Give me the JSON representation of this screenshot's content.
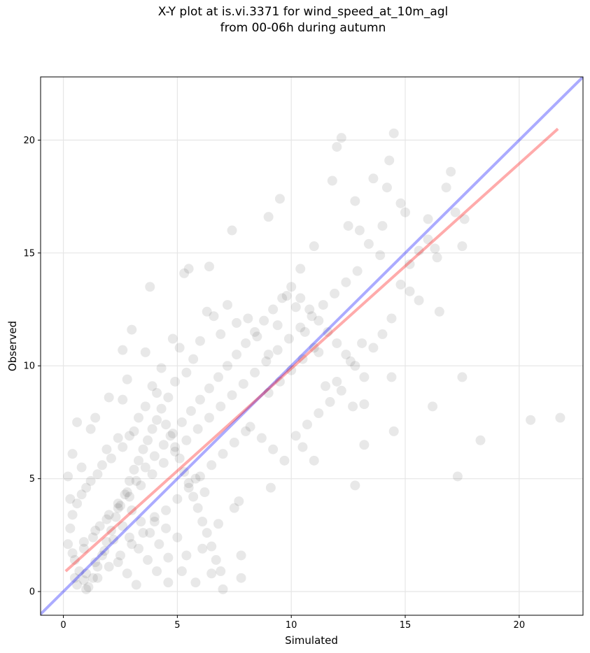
{
  "chart_data": {
    "type": "scatter",
    "title_lines": [
      "X-Y plot at is.vi.3371 for wind_speed_at_10m_agl",
      "from 00-06h during autumn"
    ],
    "xlabel": "Simulated",
    "ylabel": "Observed",
    "xlim": [
      -1.0,
      22.8
    ],
    "ylim": [
      -1.05,
      22.8
    ],
    "xticks": [
      0,
      5,
      10,
      15,
      20
    ],
    "yticks": [
      0,
      5,
      10,
      15,
      20
    ],
    "grid": true,
    "point_color": "#000000",
    "point_opacity": 0.09,
    "one_to_one_line": {
      "color": "#0000ff",
      "x": [
        -1.0,
        22.8
      ],
      "y": [
        -1.0,
        22.8
      ]
    },
    "fit_line": {
      "color": "#ff0000",
      "x": [
        0.1,
        21.7
      ],
      "y": [
        0.9,
        20.5
      ]
    },
    "points": [
      [
        0.2,
        5.1
      ],
      [
        0.3,
        4.1
      ],
      [
        0.6,
        7.5
      ],
      [
        0.4,
        6.1
      ],
      [
        0.8,
        5.5
      ],
      [
        1.2,
        7.2
      ],
      [
        1.4,
        7.7
      ],
      [
        2.0,
        8.6
      ],
      [
        2.6,
        8.5
      ],
      [
        2.8,
        9.4
      ],
      [
        2.6,
        10.7
      ],
      [
        3.0,
        11.6
      ],
      [
        3.8,
        13.5
      ],
      [
        3.6,
        10.6
      ],
      [
        4.8,
        11.2
      ],
      [
        5.3,
        14.1
      ],
      [
        5.5,
        14.3
      ],
      [
        6.4,
        14.4
      ],
      [
        7.4,
        16.0
      ],
      [
        9.0,
        16.6
      ],
      [
        9.5,
        17.4
      ],
      [
        10.4,
        14.3
      ],
      [
        11.0,
        15.3
      ],
      [
        11.8,
        18.2
      ],
      [
        12.0,
        19.7
      ],
      [
        12.2,
        20.1
      ],
      [
        12.5,
        16.2
      ],
      [
        12.8,
        17.3
      ],
      [
        13.0,
        16.0
      ],
      [
        13.6,
        18.3
      ],
      [
        14.0,
        16.2
      ],
      [
        14.2,
        17.9
      ],
      [
        14.3,
        19.1
      ],
      [
        14.5,
        20.3
      ],
      [
        14.8,
        17.2
      ],
      [
        15.0,
        16.8
      ],
      [
        15.2,
        13.3
      ],
      [
        15.6,
        12.9
      ],
      [
        16.0,
        16.5
      ],
      [
        16.3,
        15.2
      ],
      [
        16.5,
        12.4
      ],
      [
        16.8,
        17.9
      ],
      [
        17.0,
        18.6
      ],
      [
        17.2,
        16.8
      ],
      [
        17.5,
        15.3
      ],
      [
        17.6,
        16.5
      ],
      [
        17.5,
        9.5
      ],
      [
        17.3,
        5.1
      ],
      [
        18.3,
        6.7
      ],
      [
        20.5,
        7.6
      ],
      [
        21.8,
        7.7
      ],
      [
        16.2,
        8.2
      ],
      [
        14.5,
        7.1
      ],
      [
        13.2,
        6.5
      ],
      [
        12.8,
        4.7
      ],
      [
        11.0,
        5.8
      ],
      [
        10.5,
        6.4
      ],
      [
        9.1,
        4.6
      ],
      [
        7.8,
        0.6
      ],
      [
        7.0,
        0.1
      ],
      [
        6.5,
        0.8
      ],
      [
        7.8,
        1.6
      ],
      [
        7.7,
        4.0
      ],
      [
        7.5,
        3.7
      ],
      [
        6.8,
        3.0
      ],
      [
        6.1,
        1.9
      ],
      [
        14.4,
        9.5
      ],
      [
        13.1,
        11.0
      ],
      [
        12.6,
        10.2
      ],
      [
        12.0,
        9.3
      ],
      [
        11.5,
        9.1
      ],
      [
        11.2,
        10.6
      ],
      [
        10.6,
        11.5
      ],
      [
        10.2,
        12.6
      ],
      [
        9.8,
        13.1
      ],
      [
        9.4,
        11.8
      ],
      [
        9.0,
        10.5
      ],
      [
        8.5,
        11.3
      ],
      [
        8.1,
        12.1
      ],
      [
        7.6,
        11.9
      ],
      [
        7.2,
        12.7
      ],
      [
        6.9,
        11.4
      ],
      [
        6.6,
        12.2
      ],
      [
        6.3,
        12.4
      ],
      [
        6.0,
        11.1
      ],
      [
        5.7,
        10.3
      ],
      [
        5.4,
        9.7
      ],
      [
        5.1,
        10.8
      ],
      [
        4.9,
        9.3
      ],
      [
        4.6,
        8.6
      ],
      [
        4.3,
        9.9
      ],
      [
        4.1,
        8.8
      ],
      [
        3.9,
        9.1
      ],
      [
        3.6,
        8.2
      ],
      [
        3.3,
        7.7
      ],
      [
        3.1,
        7.1
      ],
      [
        2.9,
        6.9
      ],
      [
        2.6,
        6.4
      ],
      [
        2.4,
        6.8
      ],
      [
        2.1,
        5.9
      ],
      [
        1.9,
        6.3
      ],
      [
        1.7,
        5.6
      ],
      [
        1.5,
        5.2
      ],
      [
        1.2,
        4.9
      ],
      [
        1.0,
        4.6
      ],
      [
        0.8,
        4.3
      ],
      [
        0.6,
        3.9
      ],
      [
        0.4,
        3.4
      ],
      [
        0.3,
        2.8
      ],
      [
        0.2,
        2.1
      ],
      [
        0.5,
        1.4
      ],
      [
        0.7,
        0.9
      ],
      [
        0.9,
        0.5
      ],
      [
        1.1,
        0.2
      ],
      [
        1.3,
        0.6
      ],
      [
        1.5,
        1.1
      ],
      [
        1.7,
        1.6
      ],
      [
        1.9,
        2.2
      ],
      [
        2.1,
        2.7
      ],
      [
        2.3,
        3.3
      ],
      [
        2.5,
        3.8
      ],
      [
        2.7,
        4.3
      ],
      [
        2.9,
        4.9
      ],
      [
        3.1,
        5.4
      ],
      [
        3.3,
        5.8
      ],
      [
        3.5,
        6.3
      ],
      [
        3.7,
        6.7
      ],
      [
        3.9,
        7.2
      ],
      [
        4.1,
        7.6
      ],
      [
        4.3,
        8.1
      ],
      [
        4.5,
        7.4
      ],
      [
        4.7,
        6.9
      ],
      [
        4.9,
        6.4
      ],
      [
        5.1,
        5.9
      ],
      [
        5.3,
        5.3
      ],
      [
        5.5,
        4.8
      ],
      [
        5.7,
        4.2
      ],
      [
        5.9,
        3.7
      ],
      [
        6.1,
        3.1
      ],
      [
        6.3,
        2.6
      ],
      [
        6.5,
        2.0
      ],
      [
        6.7,
        1.4
      ],
      [
        6.9,
        0.9
      ],
      [
        5.8,
        0.4
      ],
      [
        5.2,
        0.9
      ],
      [
        4.6,
        1.5
      ],
      [
        4.2,
        2.1
      ],
      [
        3.8,
        2.6
      ],
      [
        3.4,
        3.1
      ],
      [
        3.0,
        3.6
      ],
      [
        2.6,
        2.9
      ],
      [
        2.2,
        2.3
      ],
      [
        1.8,
        1.8
      ],
      [
        1.4,
        1.3
      ],
      [
        1.0,
        0.8
      ],
      [
        0.6,
        0.3
      ],
      [
        0.9,
        1.9
      ],
      [
        1.3,
        2.4
      ],
      [
        1.6,
        2.9
      ],
      [
        2.0,
        3.4
      ],
      [
        2.4,
        3.9
      ],
      [
        2.8,
        4.4
      ],
      [
        3.2,
        4.9
      ],
      [
        3.6,
        5.5
      ],
      [
        4.0,
        6.0
      ],
      [
        4.4,
        6.5
      ],
      [
        4.8,
        7.0
      ],
      [
        5.2,
        7.5
      ],
      [
        5.6,
        8.0
      ],
      [
        6.0,
        8.5
      ],
      [
        6.4,
        9.0
      ],
      [
        6.8,
        9.5
      ],
      [
        7.2,
        10.0
      ],
      [
        7.6,
        10.5
      ],
      [
        8.0,
        11.0
      ],
      [
        8.4,
        11.5
      ],
      [
        8.8,
        12.0
      ],
      [
        9.2,
        12.5
      ],
      [
        9.6,
        13.0
      ],
      [
        10.0,
        13.5
      ],
      [
        10.4,
        13.0
      ],
      [
        10.8,
        12.5
      ],
      [
        11.2,
        12.0
      ],
      [
        11.6,
        11.5
      ],
      [
        12.0,
        11.0
      ],
      [
        12.4,
        10.5
      ],
      [
        12.8,
        10.0
      ],
      [
        13.2,
        9.5
      ],
      [
        13.6,
        10.8
      ],
      [
        14.0,
        11.4
      ],
      [
        14.4,
        12.1
      ],
      [
        14.8,
        13.6
      ],
      [
        15.2,
        14.5
      ],
      [
        15.6,
        15.1
      ],
      [
        16.0,
        15.6
      ],
      [
        16.4,
        14.8
      ],
      [
        13.9,
        14.9
      ],
      [
        13.4,
        15.4
      ],
      [
        12.9,
        14.2
      ],
      [
        12.4,
        13.7
      ],
      [
        11.9,
        13.2
      ],
      [
        11.4,
        12.7
      ],
      [
        10.9,
        12.2
      ],
      [
        10.4,
        11.7
      ],
      [
        9.9,
        11.2
      ],
      [
        9.4,
        10.7
      ],
      [
        8.9,
        10.2
      ],
      [
        8.4,
        9.7
      ],
      [
        7.9,
        9.2
      ],
      [
        7.4,
        8.7
      ],
      [
        6.9,
        8.2
      ],
      [
        6.4,
        7.7
      ],
      [
        5.9,
        7.2
      ],
      [
        5.4,
        6.7
      ],
      [
        4.9,
        6.2
      ],
      [
        4.4,
        5.7
      ],
      [
        3.9,
        5.2
      ],
      [
        3.4,
        4.7
      ],
      [
        2.9,
        4.2
      ],
      [
        2.4,
        3.7
      ],
      [
        1.9,
        3.2
      ],
      [
        1.4,
        2.7
      ],
      [
        0.9,
        2.2
      ],
      [
        0.4,
        1.7
      ],
      [
        8.2,
        7.3
      ],
      [
        8.7,
        6.8
      ],
      [
        9.2,
        6.3
      ],
      [
        9.7,
        5.8
      ],
      [
        10.2,
        6.9
      ],
      [
        10.7,
        7.4
      ],
      [
        11.2,
        7.9
      ],
      [
        11.7,
        8.4
      ],
      [
        12.2,
        8.9
      ],
      [
        12.7,
        8.2
      ],
      [
        13.2,
        8.3
      ],
      [
        9.0,
        8.8
      ],
      [
        9.5,
        9.3
      ],
      [
        10.0,
        9.8
      ],
      [
        10.5,
        10.3
      ],
      [
        11.0,
        10.8
      ],
      [
        7.0,
        6.1
      ],
      [
        7.5,
        6.6
      ],
      [
        8.0,
        7.1
      ],
      [
        6.5,
        5.6
      ],
      [
        6.0,
        5.1
      ],
      [
        5.5,
        4.6
      ],
      [
        5.0,
        4.1
      ],
      [
        4.5,
        3.6
      ],
      [
        4.0,
        3.1
      ],
      [
        3.5,
        2.6
      ],
      [
        3.0,
        2.1
      ],
      [
        2.5,
        1.6
      ],
      [
        2.0,
        1.1
      ],
      [
        1.5,
        0.6
      ],
      [
        1.0,
        0.1
      ],
      [
        0.5,
        0.6
      ],
      [
        3.2,
        0.3
      ],
      [
        2.8,
        0.8
      ],
      [
        2.4,
        1.3
      ],
      [
        4.6,
        0.4
      ],
      [
        4.1,
        0.9
      ],
      [
        3.7,
        1.4
      ],
      [
        3.3,
        1.9
      ],
      [
        2.9,
        2.4
      ],
      [
        5.4,
        1.6
      ],
      [
        5.0,
        2.4
      ],
      [
        4.5,
        2.8
      ],
      [
        4.0,
        3.3
      ],
      [
        6.2,
        4.4
      ],
      [
        5.8,
        5.0
      ]
    ]
  }
}
